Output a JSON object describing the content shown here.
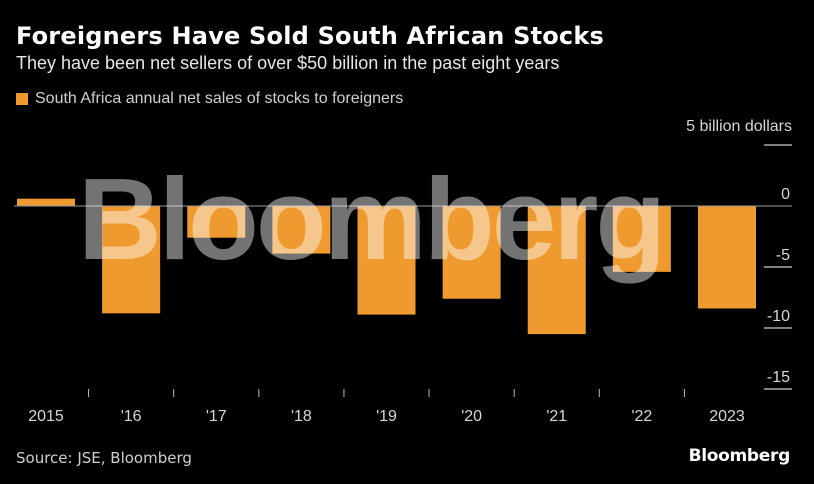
{
  "title": "Foreigners Have Sold South African Stocks",
  "subtitle": "They have been net sellers of over $50 billion in the past eight years",
  "source": "Source: JSE, Bloomberg",
  "brand": "Bloomberg",
  "watermark": "Bloomberg",
  "colors": {
    "bar": "#ee9a2e",
    "background": "#000000",
    "gridline": "#ffffff",
    "zero_line": "#9a9a9a"
  },
  "chart_data": {
    "type": "bar",
    "legend": [
      "South Africa annual net sales of stocks to foreigners"
    ],
    "legend_position": "top-left",
    "unit_label": "5 billion dollars",
    "categories": [
      "2015",
      "'16",
      "'17",
      "'18",
      "'19",
      "'20",
      "'21",
      "'22",
      "2023"
    ],
    "series": [
      {
        "name": "South Africa annual net sales of stocks to foreigners",
        "values": [
          0.6,
          -8.8,
          -2.6,
          -3.9,
          -8.9,
          -7.6,
          -10.5,
          -5.4,
          -8.4
        ]
      }
    ],
    "y_ticks": [
      5,
      0,
      -5,
      -10,
      -15
    ],
    "y_tick_labels": [
      "",
      "0",
      "-5",
      "-10",
      "-15"
    ],
    "ylim": [
      -15,
      5
    ],
    "y_axis_position": "right",
    "grid": true
  }
}
